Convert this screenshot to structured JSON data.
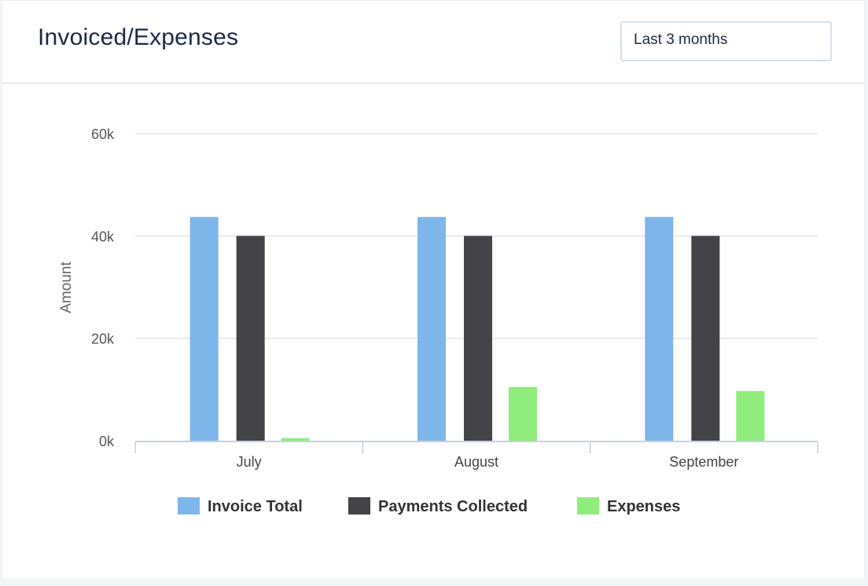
{
  "header": {
    "title": "Invoiced/Expenses",
    "range_select": "Last 3 months"
  },
  "chart_data": {
    "type": "bar",
    "categories": [
      "July",
      "August",
      "September"
    ],
    "series": [
      {
        "name": "Invoice Total",
        "color": "#7eb6ea",
        "values": [
          43.7,
          43.7,
          43.7
        ]
      },
      {
        "name": "Payments Collected",
        "color": "#434348",
        "values": [
          40,
          40,
          40
        ]
      },
      {
        "name": "Expenses",
        "color": "#90ed7d",
        "values": [
          0.5,
          10.5,
          9.7
        ]
      }
    ],
    "ylabel": "Amount",
    "xlabel": "",
    "yticks": [
      0,
      20,
      40,
      60
    ],
    "ytick_labels": [
      "0k",
      "20k",
      "40k",
      "60k"
    ],
    "ylim": [
      0,
      60
    ],
    "units": "thousands",
    "grid": true,
    "legend": "bottom-center"
  }
}
